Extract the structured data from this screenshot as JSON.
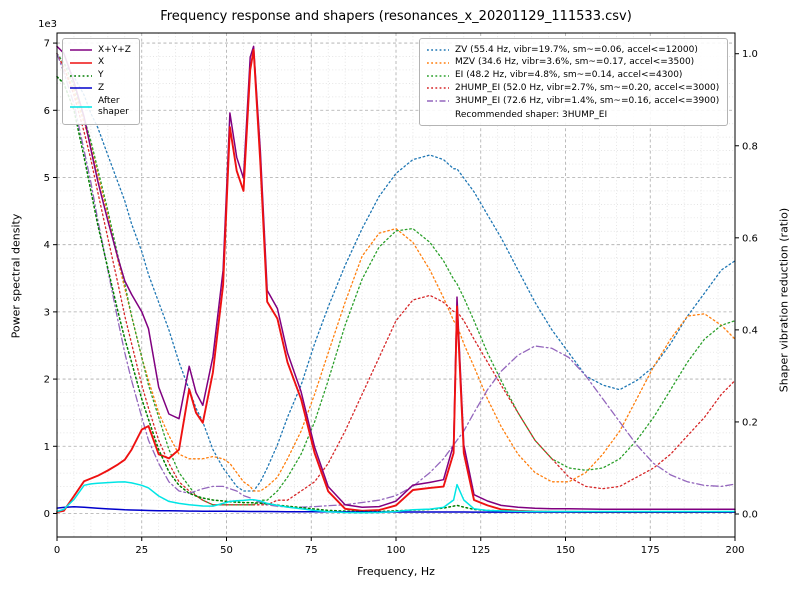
{
  "chart_data": {
    "type": "line",
    "title": "Frequency response and shapers (resonances_x_20201129_111533.csv)",
    "xlabel": "Frequency, Hz",
    "ylabel_left": "Power spectral density",
    "ylabel_right": "Shaper vibration reduction (ratio)",
    "left_axis_multiplier": "1e3",
    "xlim": [
      0,
      200
    ],
    "ylim_left": [
      0,
      7000
    ],
    "ylim_right": [
      0,
      1.0
    ],
    "x_ticks": [
      0,
      25,
      50,
      75,
      100,
      125,
      150,
      175,
      200
    ],
    "y_ticks_left": {
      "values": [
        0,
        1000,
        2000,
        3000,
        4000,
        5000,
        6000,
        7000
      ],
      "labels": [
        "0",
        "1",
        "2",
        "3",
        "4",
        "5",
        "6",
        "7"
      ]
    },
    "y_ticks_right": {
      "values": [
        0,
        0.2,
        0.4,
        0.6,
        0.8,
        1.0
      ],
      "labels": [
        "0.0",
        "0.2",
        "0.4",
        "0.6",
        "0.8",
        "1.0"
      ]
    },
    "x_minor_step": 5,
    "y_minor_step_left": 200,
    "grid": true,
    "legend_left_position": "upper left",
    "legend_right_position": "upper right",
    "recommended_note": "Recommended shaper: 3HUMP_EI",
    "x": [
      0,
      2,
      5,
      8,
      10,
      12,
      15,
      18,
      20,
      22,
      25,
      27,
      30,
      33,
      36,
      39,
      41,
      43,
      46,
      49,
      51,
      53,
      55,
      57,
      58,
      60,
      62,
      65,
      68,
      72,
      76,
      80,
      85,
      90,
      95,
      100,
      105,
      110,
      114,
      117,
      118,
      120,
      123,
      127,
      131,
      136,
      141,
      146,
      151,
      156,
      161,
      166,
      171,
      176,
      181,
      186,
      191,
      196,
      200
    ],
    "psd_series": [
      {
        "name": "sum",
        "label": "X+Y+Z",
        "color": "#800080",
        "style": "solid",
        "values": [
          6950,
          6850,
          6420,
          5900,
          5420,
          4950,
          4360,
          3800,
          3460,
          3260,
          3000,
          2750,
          1880,
          1480,
          1410,
          2190,
          1800,
          1610,
          2330,
          3620,
          5960,
          5300,
          4990,
          6790,
          6950,
          5380,
          3320,
          3050,
          2390,
          1810,
          990,
          400,
          130,
          92,
          102,
          184,
          422,
          462,
          502,
          1030,
          3220,
          1020,
          280,
          186,
          120,
          92,
          78,
          71,
          70,
          66,
          64,
          63,
          63,
          62,
          62,
          62,
          62,
          62,
          62
        ]
      },
      {
        "name": "x",
        "label": "X",
        "color": "#ee1111",
        "style": "solid",
        "values": [
          20,
          40,
          260,
          480,
          520,
          560,
          640,
          730,
          800,
          950,
          1250,
          1300,
          880,
          820,
          950,
          1850,
          1500,
          1350,
          2100,
          3400,
          5750,
          5100,
          4800,
          6600,
          6900,
          5200,
          3150,
          2900,
          2250,
          1700,
          900,
          330,
          70,
          40,
          50,
          120,
          350,
          380,
          400,
          900,
          3080,
          900,
          200,
          120,
          60,
          40,
          30,
          25,
          25,
          22,
          20,
          20,
          20,
          20,
          20,
          20,
          20,
          20,
          20
        ]
      },
      {
        "name": "y",
        "label": "Y",
        "color": "#007f00",
        "style": "dotted",
        "values": [
          6500,
          6400,
          6000,
          5300,
          4800,
          4300,
          3650,
          3000,
          2600,
          2250,
          1700,
          1400,
          950,
          620,
          420,
          300,
          260,
          230,
          200,
          185,
          175,
          168,
          162,
          160,
          160,
          152,
          142,
          125,
          108,
          88,
          66,
          46,
          35,
          30,
          30,
          40,
          50,
          60,
          80,
          110,
          120,
          95,
          60,
          45,
          40,
          32,
          28,
          26,
          25,
          24,
          24,
          23,
          23,
          22,
          22,
          22,
          22,
          22,
          22
        ]
      },
      {
        "name": "z",
        "label": "Z",
        "color": "#0000cc",
        "style": "solid",
        "values": [
          80,
          90,
          100,
          92,
          85,
          78,
          68,
          60,
          55,
          52,
          47,
          45,
          42,
          40,
          38,
          36,
          35,
          34,
          33,
          32,
          32,
          31,
          31,
          30,
          30,
          30,
          29,
          28,
          27,
          26,
          25,
          24,
          23,
          22,
          22,
          22,
          22,
          22,
          22,
          22,
          22,
          22,
          21,
          21,
          20,
          20,
          20,
          20,
          20,
          20,
          20,
          20,
          20,
          20,
          20,
          20,
          20,
          20,
          20
        ]
      },
      {
        "name": "after-shaper",
        "label": "After\nshaper",
        "color": "#00e5e5",
        "style": "solid",
        "values": [
          30,
          60,
          210,
          420,
          440,
          450,
          460,
          468,
          470,
          455,
          420,
          380,
          260,
          180,
          150,
          130,
          120,
          112,
          110,
          150,
          180,
          190,
          195,
          205,
          205,
          185,
          150,
          120,
          95,
          70,
          45,
          25,
          15,
          12,
          15,
          30,
          55,
          65,
          90,
          200,
          430,
          200,
          70,
          45,
          38,
          32,
          30,
          30,
          30,
          30,
          30,
          30,
          30,
          30,
          30,
          30,
          30,
          30,
          30
        ]
      }
    ],
    "shaper_series": [
      {
        "name": "zv",
        "label": "ZV (55.4 Hz, vibr=19.7%, sm~=0.06, accel<=12000)",
        "color": "#1f77b4",
        "style": "dotted",
        "values": [
          1.0,
          0.98,
          0.95,
          0.91,
          0.87,
          0.84,
          0.78,
          0.72,
          0.68,
          0.63,
          0.57,
          0.52,
          0.46,
          0.4,
          0.33,
          0.27,
          0.23,
          0.2,
          0.14,
          0.1,
          0.08,
          0.06,
          0.05,
          0.05,
          0.05,
          0.07,
          0.1,
          0.15,
          0.21,
          0.28,
          0.37,
          0.45,
          0.54,
          0.62,
          0.69,
          0.74,
          0.77,
          0.78,
          0.77,
          0.75,
          0.75,
          0.73,
          0.7,
          0.65,
          0.6,
          0.53,
          0.46,
          0.4,
          0.35,
          0.3,
          0.28,
          0.27,
          0.29,
          0.32,
          0.37,
          0.43,
          0.48,
          0.53,
          0.55
        ]
      },
      {
        "name": "mzv",
        "label": "MZV (34.6 Hz, vibr=3.6%, sm~=0.17, accel<=3500)",
        "color": "#ff7f0e",
        "style": "dotted",
        "values": [
          1.0,
          0.97,
          0.92,
          0.85,
          0.8,
          0.74,
          0.65,
          0.55,
          0.49,
          0.43,
          0.34,
          0.29,
          0.22,
          0.17,
          0.13,
          0.12,
          0.12,
          0.12,
          0.125,
          0.12,
          0.11,
          0.09,
          0.07,
          0.06,
          0.05,
          0.05,
          0.06,
          0.08,
          0.12,
          0.18,
          0.26,
          0.35,
          0.46,
          0.56,
          0.61,
          0.62,
          0.59,
          0.53,
          0.47,
          0.42,
          0.41,
          0.37,
          0.32,
          0.25,
          0.19,
          0.13,
          0.09,
          0.07,
          0.07,
          0.09,
          0.13,
          0.18,
          0.25,
          0.32,
          0.38,
          0.43,
          0.435,
          0.41,
          0.38
        ]
      },
      {
        "name": "ei",
        "label": "EI (48.2 Hz, vibr=4.8%, sm~=0.14, accel<=4300)",
        "color": "#2ca02c",
        "style": "dotted",
        "values": [
          1.0,
          0.98,
          0.93,
          0.86,
          0.81,
          0.75,
          0.66,
          0.56,
          0.5,
          0.43,
          0.34,
          0.28,
          0.21,
          0.14,
          0.09,
          0.06,
          0.04,
          0.03,
          0.02,
          0.02,
          0.02,
          0.02,
          0.02,
          0.02,
          0.02,
          0.03,
          0.03,
          0.05,
          0.08,
          0.13,
          0.2,
          0.29,
          0.41,
          0.51,
          0.58,
          0.615,
          0.62,
          0.59,
          0.55,
          0.51,
          0.5,
          0.47,
          0.42,
          0.35,
          0.29,
          0.22,
          0.16,
          0.12,
          0.1,
          0.095,
          0.1,
          0.12,
          0.16,
          0.21,
          0.27,
          0.33,
          0.38,
          0.41,
          0.42
        ]
      },
      {
        "name": "2hump-ei",
        "label": "2HUMP_EI (52.0 Hz, vibr=2.7%, sm~=0.20, accel<=3000)",
        "color": "#d62728",
        "style": "dotted",
        "values": [
          1.0,
          0.97,
          0.91,
          0.83,
          0.77,
          0.7,
          0.6,
          0.5,
          0.43,
          0.37,
          0.28,
          0.23,
          0.16,
          0.11,
          0.07,
          0.05,
          0.04,
          0.03,
          0.02,
          0.02,
          0.02,
          0.02,
          0.02,
          0.02,
          0.02,
          0.02,
          0.02,
          0.03,
          0.03,
          0.05,
          0.07,
          0.11,
          0.18,
          0.26,
          0.34,
          0.42,
          0.465,
          0.475,
          0.46,
          0.44,
          0.44,
          0.42,
          0.38,
          0.33,
          0.28,
          0.22,
          0.16,
          0.12,
          0.08,
          0.06,
          0.055,
          0.06,
          0.08,
          0.1,
          0.13,
          0.17,
          0.21,
          0.26,
          0.29
        ]
      },
      {
        "name": "3hump-ei",
        "label": "3HUMP_EI (72.6 Hz, vibr=1.4%, sm~=0.16, accel<=3900)",
        "color": "#9467bd",
        "style": "dashdot",
        "values": [
          1.0,
          0.96,
          0.89,
          0.79,
          0.72,
          0.64,
          0.53,
          0.42,
          0.35,
          0.29,
          0.21,
          0.16,
          0.11,
          0.07,
          0.05,
          0.045,
          0.05,
          0.055,
          0.06,
          0.06,
          0.055,
          0.05,
          0.04,
          0.035,
          0.03,
          0.025,
          0.02,
          0.017,
          0.015,
          0.015,
          0.016,
          0.018,
          0.02,
          0.025,
          0.03,
          0.04,
          0.06,
          0.09,
          0.12,
          0.15,
          0.16,
          0.18,
          0.22,
          0.27,
          0.31,
          0.345,
          0.365,
          0.36,
          0.34,
          0.3,
          0.25,
          0.2,
          0.15,
          0.11,
          0.085,
          0.07,
          0.062,
          0.06,
          0.065
        ]
      }
    ]
  }
}
